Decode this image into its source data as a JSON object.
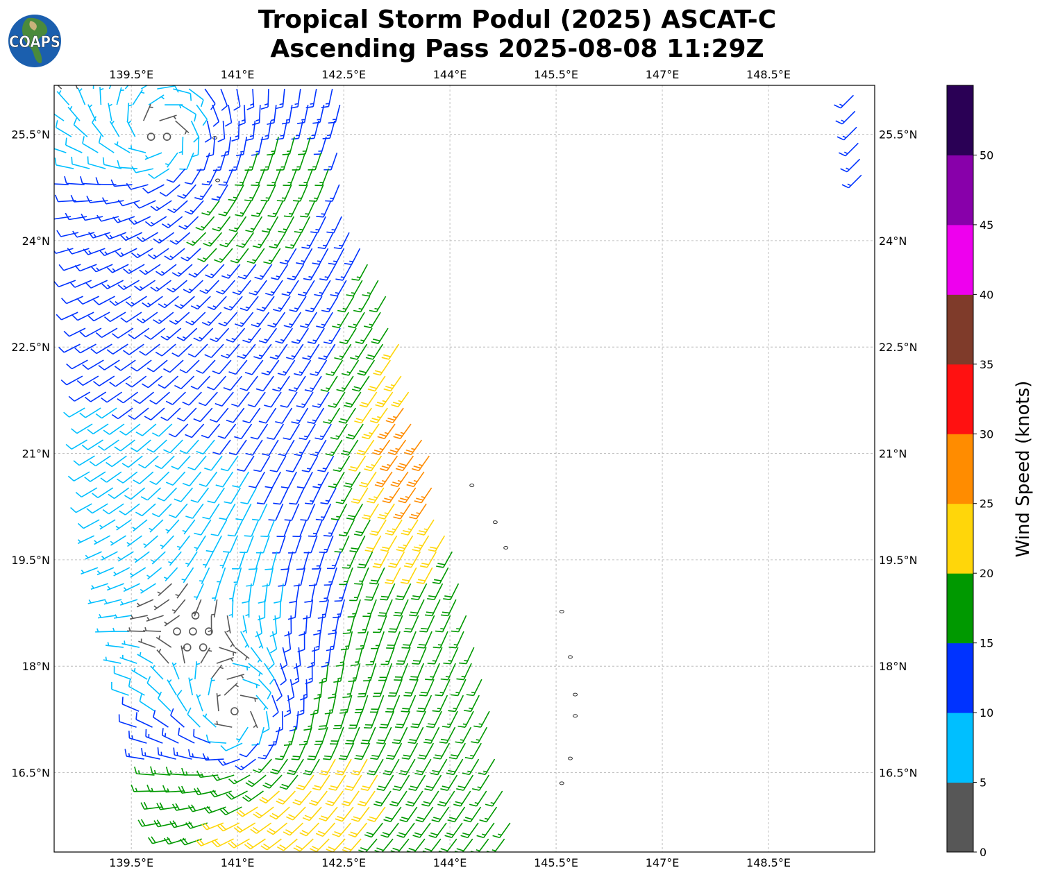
{
  "title": {
    "line1": "Tropical Storm Podul (2025) ASCAT-C",
    "line2": "Ascending Pass 2025-08-08 11:29Z"
  },
  "logo": {
    "text": "COAPS"
  },
  "chart_data": {
    "type": "wind-barb-map",
    "extent": {
      "lon": [
        138.41,
        150.0
      ],
      "lat": [
        15.38,
        26.19
      ]
    },
    "lon_ticks": [
      {
        "value": 139.5,
        "label": "139.5°E"
      },
      {
        "value": 141,
        "label": "141°E"
      },
      {
        "value": 142.5,
        "label": "142.5°E"
      },
      {
        "value": 144,
        "label": "144°E"
      },
      {
        "value": 145.5,
        "label": "145.5°E"
      },
      {
        "value": 147,
        "label": "147°E"
      },
      {
        "value": 148.5,
        "label": "148.5°E"
      }
    ],
    "lat_ticks": [
      {
        "value": 25.5,
        "label": "25.5°N"
      },
      {
        "value": 24,
        "label": "24°N"
      },
      {
        "value": 22.5,
        "label": "22.5°N"
      },
      {
        "value": 21,
        "label": "21°N"
      },
      {
        "value": 19.5,
        "label": "19.5°N"
      },
      {
        "value": 18,
        "label": "18°N"
      },
      {
        "value": 16.5,
        "label": "16.5°N"
      }
    ],
    "grid": true,
    "colorbar": {
      "label": "Wind Speed (knots)",
      "range": [
        0,
        55
      ],
      "ticks": [
        "0",
        "5",
        "10",
        "15",
        "20",
        "25",
        "30",
        "35",
        "40",
        "45",
        "50"
      ],
      "bins": [
        {
          "min": 0,
          "max": 5,
          "color": "#575757"
        },
        {
          "min": 5,
          "max": 10,
          "color": "#00bfff"
        },
        {
          "min": 10,
          "max": 15,
          "color": "#0033ff"
        },
        {
          "min": 15,
          "max": 20,
          "color": "#009900"
        },
        {
          "min": 20,
          "max": 25,
          "color": "#ffd60a"
        },
        {
          "min": 25,
          "max": 30,
          "color": "#ff8c00"
        },
        {
          "min": 30,
          "max": 35,
          "color": "#ff1111"
        },
        {
          "min": 35,
          "max": 40,
          "color": "#7f3b2a"
        },
        {
          "min": 40,
          "max": 45,
          "color": "#ee00ee"
        },
        {
          "min": 45,
          "max": 50,
          "color": "#8800aa"
        },
        {
          "min": 50,
          "max": 55,
          "color": "#2a0055"
        }
      ]
    },
    "swath": {
      "left_edge": [
        [
          26.2,
          138.41
        ],
        [
          19.5,
          138.9
        ],
        [
          15.38,
          139.9
        ]
      ],
      "right_edge": [
        [
          26.2,
          142.45
        ],
        [
          24.6,
          142.5
        ],
        [
          23.3,
          143.1
        ],
        [
          19.5,
          144.1
        ],
        [
          15.38,
          145.0
        ]
      ],
      "spacing_deg": 0.225
    },
    "wind_field": {
      "background_from_deg": 225,
      "background_knots": 11,
      "jet": {
        "lon": 143.5,
        "lat": 21.0,
        "knots": 15
      },
      "circulations": [
        {
          "lon": 139.9,
          "lat": 25.65,
          "knots": 9
        },
        {
          "lon": 141.0,
          "lat": 17.2,
          "knots": 11
        }
      ]
    },
    "islands": [
      [
        144.31,
        20.55
      ],
      [
        144.64,
        20.03
      ],
      [
        144.79,
        19.67
      ],
      [
        145.58,
        18.77
      ],
      [
        145.7,
        18.13
      ],
      [
        145.77,
        17.6
      ],
      [
        145.77,
        17.3
      ],
      [
        145.7,
        16.7
      ],
      [
        145.58,
        16.35
      ],
      [
        140.72,
        24.85
      ],
      [
        140.68,
        25.45
      ]
    ]
  }
}
